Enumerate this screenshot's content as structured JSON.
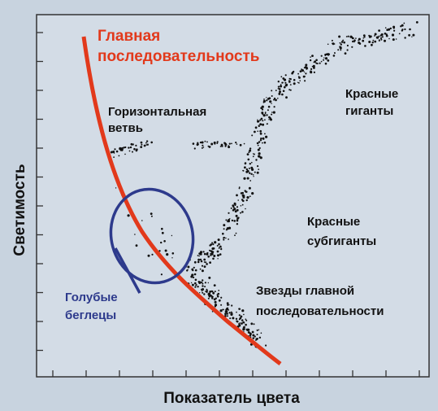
{
  "main_sequence": [
    "Главная",
    "последовательность"
  ],
  "horizontal_branch": [
    "Горизонтальная",
    "ветвь"
  ],
  "red_giants": [
    "Красные",
    "гиганты"
  ],
  "red_subgiants": [
    "Красные",
    "субгиганты"
  ],
  "main_sequence_stars": [
    "Звезды главной",
    "последовательности"
  ],
  "blue_stragglers": [
    "Голубые",
    "беглецы"
  ],
  "y_axis_label": "Светимость",
  "x_axis_label": "Показатель цвета"
}
